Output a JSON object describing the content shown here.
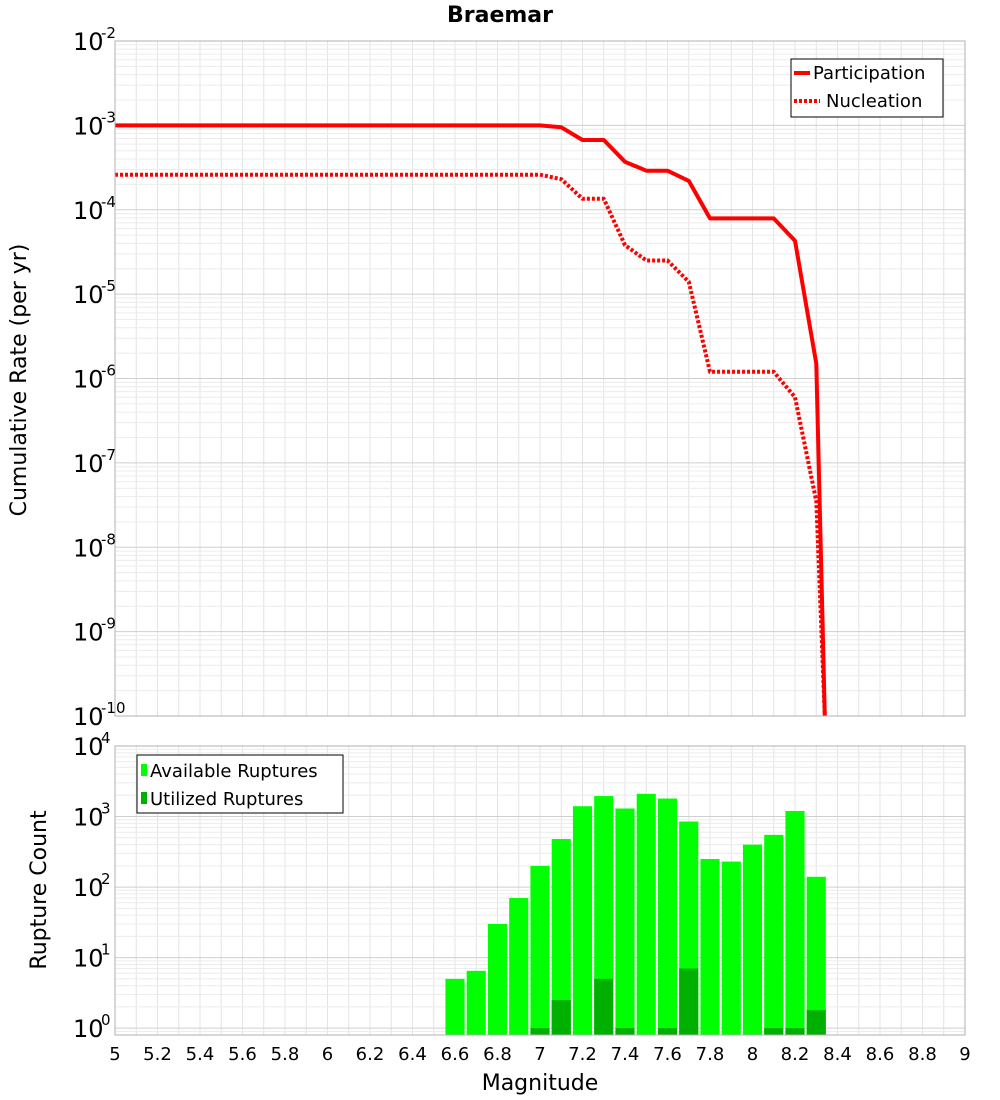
{
  "chart_data": [
    {
      "type": "line",
      "title": "Braemar",
      "xlabel": "",
      "ylabel": "Cumulative Rate (per yr)",
      "xlim": [
        5,
        9
      ],
      "ylim": [
        1e-10,
        0.01
      ],
      "yscale": "log",
      "y_tick_exponents": [
        "-2",
        "-3",
        "-4",
        "-5",
        "-6",
        "-7",
        "-8",
        "-9",
        "-10"
      ],
      "grid": true,
      "legend_position": "top-right",
      "series": [
        {
          "name": "Participation",
          "style": "solid",
          "color": "#ff0000",
          "x": [
            5.0,
            7.0,
            7.1,
            7.2,
            7.3,
            7.4,
            7.5,
            7.6,
            7.7,
            7.8,
            7.9,
            8.0,
            8.1,
            8.2,
            8.3,
            8.34
          ],
          "y": [
            0.001,
            0.001,
            0.00095,
            0.00067,
            0.00067,
            0.00037,
            0.00029,
            0.00029,
            0.00022,
            7.9e-05,
            7.9e-05,
            7.9e-05,
            7.9e-05,
            4.3e-05,
            1.5e-06,
            1e-10
          ]
        },
        {
          "name": "Nucleation",
          "style": "dotted",
          "color": "#ff0000",
          "x": [
            5.0,
            7.0,
            7.1,
            7.2,
            7.3,
            7.4,
            7.5,
            7.6,
            7.7,
            7.8,
            7.9,
            8.0,
            8.1,
            8.2,
            8.3,
            8.34
          ],
          "y": [
            0.00026,
            0.00026,
            0.00023,
            0.000135,
            0.000135,
            3.8e-05,
            2.5e-05,
            2.5e-05,
            1.4e-05,
            1.2e-06,
            1.2e-06,
            1.2e-06,
            1.2e-06,
            6e-07,
            3.5e-08,
            1e-10
          ]
        }
      ]
    },
    {
      "type": "bar",
      "title": "",
      "xlabel": "Magnitude",
      "ylabel": "Rupture Count",
      "xlim": [
        5,
        9
      ],
      "ylim": [
        0.8,
        10000
      ],
      "yscale": "log",
      "y_tick_exponents": [
        "4",
        "3",
        "2",
        "1",
        "0"
      ],
      "x_ticks": [
        "5",
        "5.2",
        "5.4",
        "5.6",
        "5.8",
        "6",
        "6.2",
        "6.4",
        "6.6",
        "6.8",
        "7",
        "7.2",
        "7.4",
        "7.6",
        "7.8",
        "8",
        "8.2",
        "8.4",
        "8.6",
        "8.8",
        "9"
      ],
      "grid": true,
      "legend_position": "top-left",
      "bar_width": 0.09,
      "categories": [
        6.6,
        6.7,
        6.8,
        6.9,
        7.0,
        7.1,
        7.2,
        7.3,
        7.4,
        7.5,
        7.6,
        7.7,
        7.8,
        7.9,
        8.0,
        8.1,
        8.2,
        8.3
      ],
      "series": [
        {
          "name": "Available Ruptures",
          "color": "#00ff00",
          "values": [
            5,
            6.5,
            30,
            70,
            200,
            480,
            1400,
            1950,
            1300,
            2100,
            1800,
            850,
            250,
            230,
            400,
            550,
            1200,
            140
          ]
        },
        {
          "name": "Utilized Ruptures",
          "color": "#00b000",
          "values": [
            0,
            0,
            0,
            0,
            1,
            2.5,
            0,
            5,
            1,
            0,
            1,
            7,
            0,
            0,
            0,
            1,
            1,
            1.8
          ]
        }
      ]
    }
  ]
}
